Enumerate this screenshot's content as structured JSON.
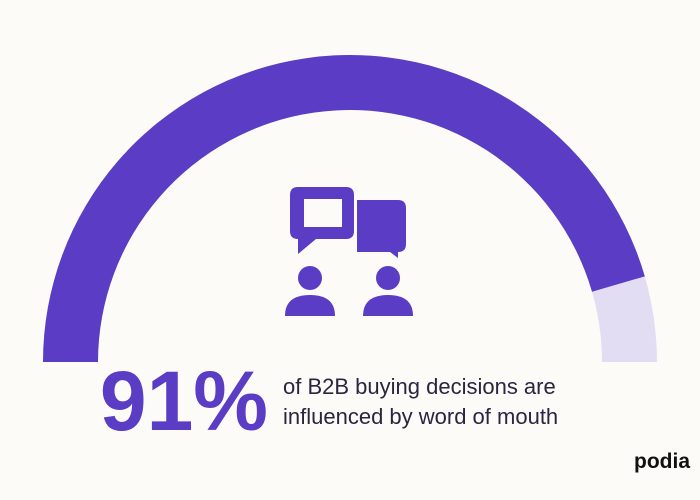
{
  "chart_data": {
    "type": "gauge",
    "value": 91,
    "value_label": "91%",
    "ylim": [
      0,
      100
    ],
    "color": "#5b3cc4",
    "track_color": "#e2ddf3",
    "description": [
      "of B2B buying decisions are",
      "influenced by word of mouth"
    ],
    "brand": "podia"
  }
}
